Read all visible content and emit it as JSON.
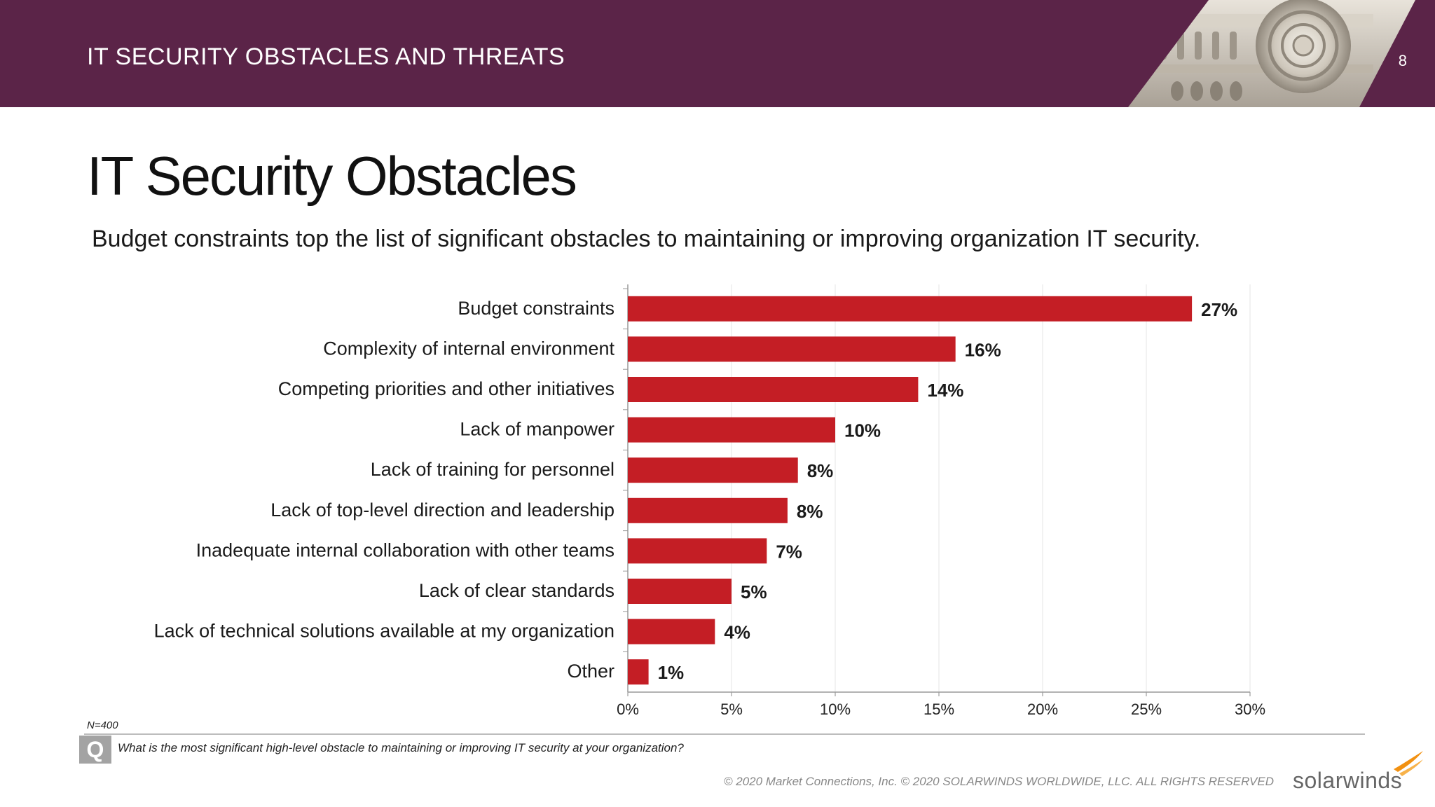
{
  "header": {
    "section_title": "IT SECURITY OBSTACLES AND THREATS",
    "page_number": "8"
  },
  "page_title": "IT Security Obstacles",
  "subtitle": "Budget constraints top the list of significant obstacles to maintaining or improving organization IT security.",
  "chart_data": {
    "type": "bar",
    "orientation": "horizontal",
    "categories": [
      "Budget constraints",
      "Complexity of internal environment",
      "Competing priorities and other initiatives",
      "Lack of manpower",
      "Lack of training for personnel",
      "Lack of top-level direction and leadership",
      "Inadequate internal collaboration with other teams",
      "Lack of clear standards",
      "Lack of technical solutions available at my organization",
      "Other"
    ],
    "values": [
      27.2,
      15.8,
      14.0,
      10.0,
      8.2,
      7.7,
      6.7,
      5.0,
      4.2,
      1.0
    ],
    "data_labels": [
      "27%",
      "16%",
      "14%",
      "10%",
      "8%",
      "8%",
      "7%",
      "5%",
      "4%",
      "1%"
    ],
    "xlim": [
      0,
      30
    ],
    "x_ticks": [
      "0%",
      "5%",
      "10%",
      "15%",
      "20%",
      "25%",
      "30%"
    ],
    "x_grid": true,
    "bar_color": "#c41e25"
  },
  "footnote": {
    "n_label": "N=400",
    "q_icon": "Q",
    "question": "What is the most significant high-level obstacle to maintaining or improving IT security at your organization?"
  },
  "footer": {
    "copyright": "© 2020 Market Connections, Inc. © 2020 SOLARWINDS WORLDWIDE, LLC. ALL RIGHTS RESERVED",
    "logo_text": "solarwinds"
  },
  "colors": {
    "header_bg": "#5b2448",
    "bar": "#c41e25",
    "logo_flame": "#f29111"
  }
}
